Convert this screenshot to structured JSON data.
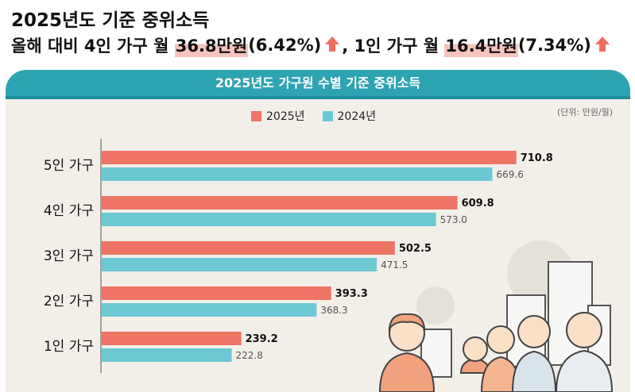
{
  "headline": {
    "title": "2025년도 기준 중위소득",
    "line_prefix": "올해 대비 4인 가구 월 ",
    "four_value": "36.8만원",
    "four_pct": "(6.42%)",
    "separator": ", 1인 가구 월 ",
    "one_value": "16.4만원",
    "one_pct": "(7.34%)",
    "arrow_icon": "up-arrow-icon"
  },
  "colors": {
    "series_2025": "#ee7465",
    "series_2024": "#6cc8d3",
    "banner": "#2ea3b1",
    "panel": "#f2efe9",
    "highlight": "#f6c4bb"
  },
  "chart_data": {
    "type": "bar",
    "orientation": "horizontal",
    "title": "2025년도 가구원 수별 기준 중위소득",
    "unit_note": "(단위: 만원/월)",
    "categories": [
      "5인 가구",
      "4인 가구",
      "3인 가구",
      "2인 가구",
      "1인 가구"
    ],
    "series": [
      {
        "name": "2025년",
        "values": [
          710.8,
          609.8,
          502.5,
          393.3,
          239.2
        ],
        "labels": [
          "710.8",
          "609.8",
          "502.5",
          "393.3",
          "239.2"
        ]
      },
      {
        "name": "2024년",
        "values": [
          669.6,
          573.0,
          471.5,
          368.3,
          222.8
        ],
        "labels": [
          "669.6",
          "573.0",
          "471.5",
          "368.3",
          "222.8"
        ]
      }
    ],
    "xlim": [
      0,
      800
    ],
    "legend_position": "top-center",
    "grid": false
  },
  "illustration": {
    "description_icon": "family-with-buildings-illustration"
  }
}
